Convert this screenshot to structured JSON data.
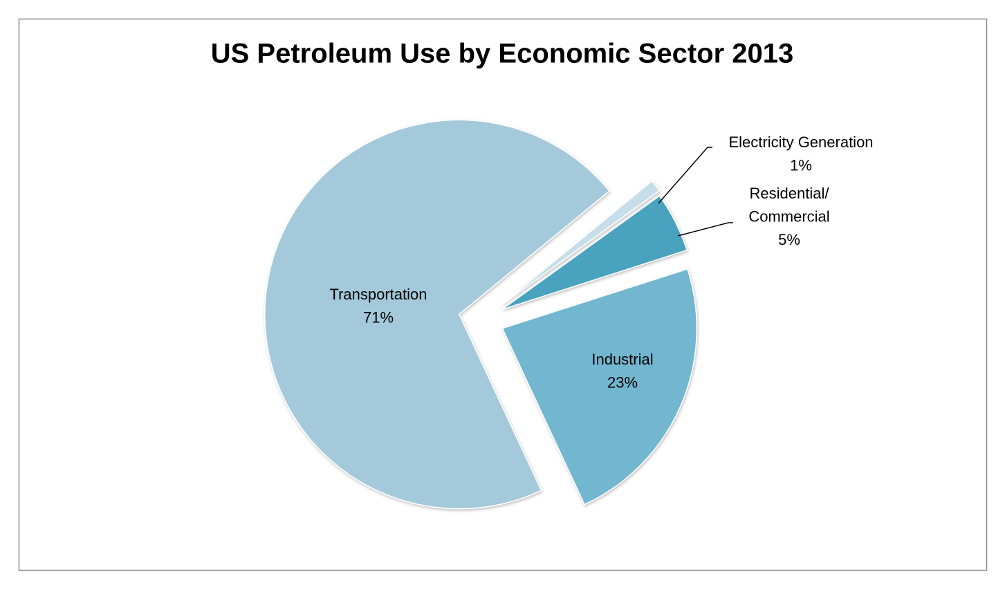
{
  "chart_data": {
    "type": "pie",
    "title": "US Petroleum Use by Economic Sector 2013",
    "categories": [
      "Transportation",
      "Electricity Generation",
      "Residential/Commercial",
      "Industrial"
    ],
    "values": [
      71,
      1,
      5,
      23
    ],
    "value_labels": [
      "71%",
      "1%",
      "5%",
      "23%"
    ],
    "colors": [
      "#a3c9da",
      "#c5dee9",
      "#4aa3bf",
      "#72b6cf"
    ]
  }
}
